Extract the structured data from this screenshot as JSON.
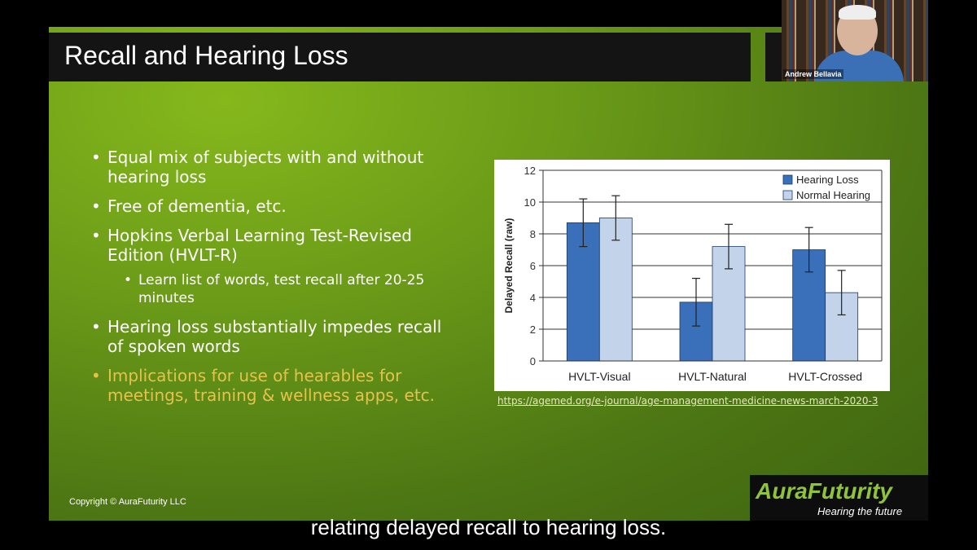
{
  "slide": {
    "title": "Recall and Hearing Loss",
    "bullets": [
      "Equal mix of subjects with and without hearing loss",
      "Free of dementia, etc.",
      "Hopkins Verbal Learning Test-Revised Edition (HVLT-R)",
      "Learn list of words, test recall after 20-25 minutes",
      "Hearing loss substantially impedes recall of spoken words",
      "Implications for use of hearables for meetings, training & wellness apps, etc."
    ],
    "link": "https://agemed.org/e-journal/age-management-medicine-news-march-2020-3",
    "copyright": "Copyright © AuraFuturity LLC",
    "logo_word1": "Aura",
    "logo_word2": "Futurity",
    "logo_tagline": "Hearing the future"
  },
  "video": {
    "participant_name": "Andrew Bellavia"
  },
  "caption": "relating delayed recall to hearing loss.",
  "colors": {
    "hearing_loss": "#3a70b9",
    "normal_hearing": "#c3d3ea",
    "logo_green": "#8fc43a",
    "highlight": "#e6c24a"
  },
  "chart_data": {
    "type": "bar",
    "categories": [
      "HVLT-Visual",
      "HVLT-Natural",
      "HVLT-Crossed"
    ],
    "series": [
      {
        "name": "Hearing Loss",
        "values": [
          8.7,
          3.7,
          7.0
        ],
        "error": [
          1.5,
          1.5,
          1.4
        ]
      },
      {
        "name": "Normal Hearing",
        "values": [
          9.0,
          7.2,
          4.3
        ],
        "error": [
          1.4,
          1.4,
          1.4
        ]
      }
    ],
    "ylabel": "Delayed Recall (raw)",
    "ylim": [
      0,
      12
    ],
    "yticks": [
      0,
      2,
      4,
      6,
      8,
      10,
      12
    ],
    "grid": true,
    "legend": "top-right"
  }
}
